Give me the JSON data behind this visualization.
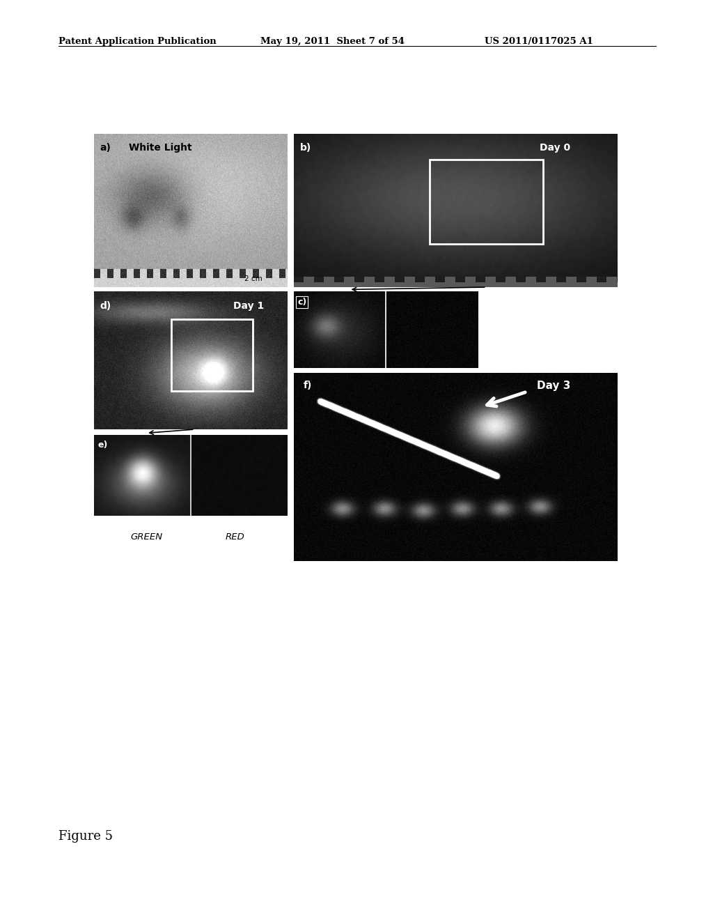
{
  "background_color": "#ffffff",
  "header_left": "Patent Application Publication",
  "header_mid": "May 19, 2011  Sheet 7 of 54",
  "header_right": "US 2011/0117025 A1",
  "figure_label": "Figure 5",
  "panel_a_label": "a)",
  "panel_a_text": "White Light",
  "panel_b_label": "b)",
  "panel_b_text": "Day 0",
  "panel_c_label": "c)",
  "panel_d_label": "d)",
  "panel_d_text": "Day 1",
  "panel_e_label": "e)",
  "panel_f_label": "f)",
  "panel_f_text": "Day 3",
  "label_green": "GREEN",
  "label_red": "RED",
  "fig_width": 10.24,
  "fig_height": 13.2
}
